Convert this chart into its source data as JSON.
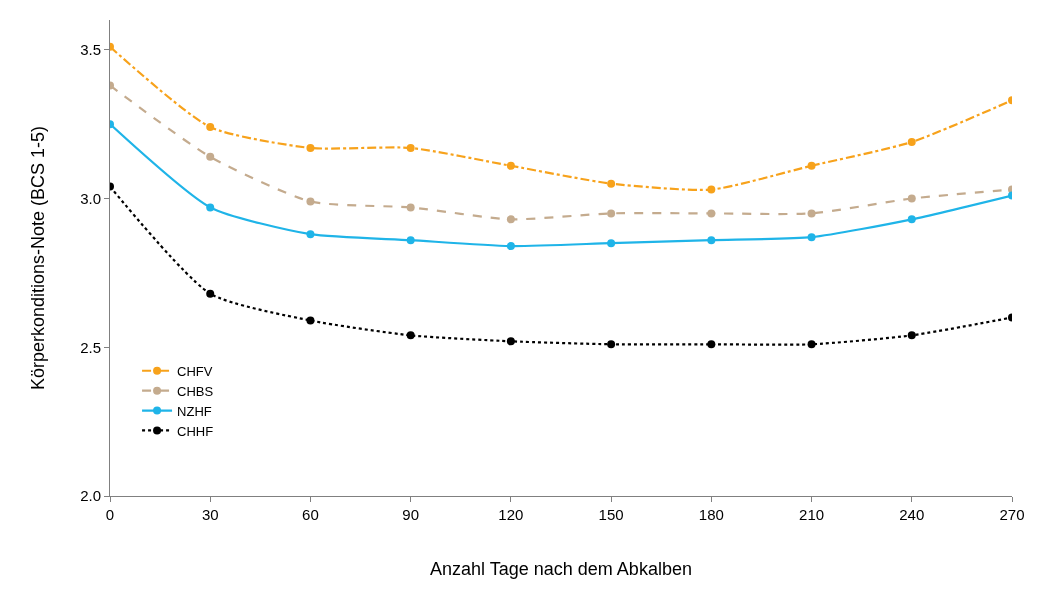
{
  "chart_data": {
    "type": "line",
    "xlabel": "Anzahl Tage nach dem Abkalben",
    "ylabel": "Körperkonditions-Note (BCS 1-5)",
    "x": [
      0,
      30,
      60,
      90,
      120,
      150,
      180,
      210,
      240,
      270
    ],
    "series": [
      {
        "name": "CHFV",
        "color": "#f7a21b",
        "line_style": "dashdot",
        "values": [
          3.51,
          3.24,
          3.17,
          3.17,
          3.11,
          3.05,
          3.03,
          3.11,
          3.19,
          3.33
        ]
      },
      {
        "name": "CHBS",
        "color": "#c4ab8e",
        "line_style": "dashed",
        "values": [
          3.38,
          3.14,
          2.99,
          2.97,
          2.93,
          2.95,
          2.95,
          2.95,
          3.0,
          3.03
        ]
      },
      {
        "name": "NZHF",
        "color": "#1fb4e8",
        "line_style": "solid",
        "values": [
          3.25,
          2.97,
          2.88,
          2.86,
          2.84,
          2.85,
          2.86,
          2.87,
          2.93,
          3.01
        ]
      },
      {
        "name": "CHHF",
        "color": "#000000",
        "line_style": "dotted",
        "values": [
          3.04,
          2.68,
          2.59,
          2.54,
          2.52,
          2.51,
          2.51,
          2.51,
          2.54,
          2.6
        ]
      }
    ],
    "xlim": [
      0,
      270
    ],
    "xticks": [
      0,
      30,
      60,
      90,
      120,
      150,
      180,
      210,
      240,
      270
    ],
    "ylim": [
      2.0,
      3.6
    ],
    "yticks": [
      {
        "value": 2,
        "label": "2.0"
      },
      2.5,
      {
        "value": 3,
        "label": "3.0"
      },
      3.5
    ],
    "grid": false,
    "legend": "left",
    "marker": "circle"
  }
}
